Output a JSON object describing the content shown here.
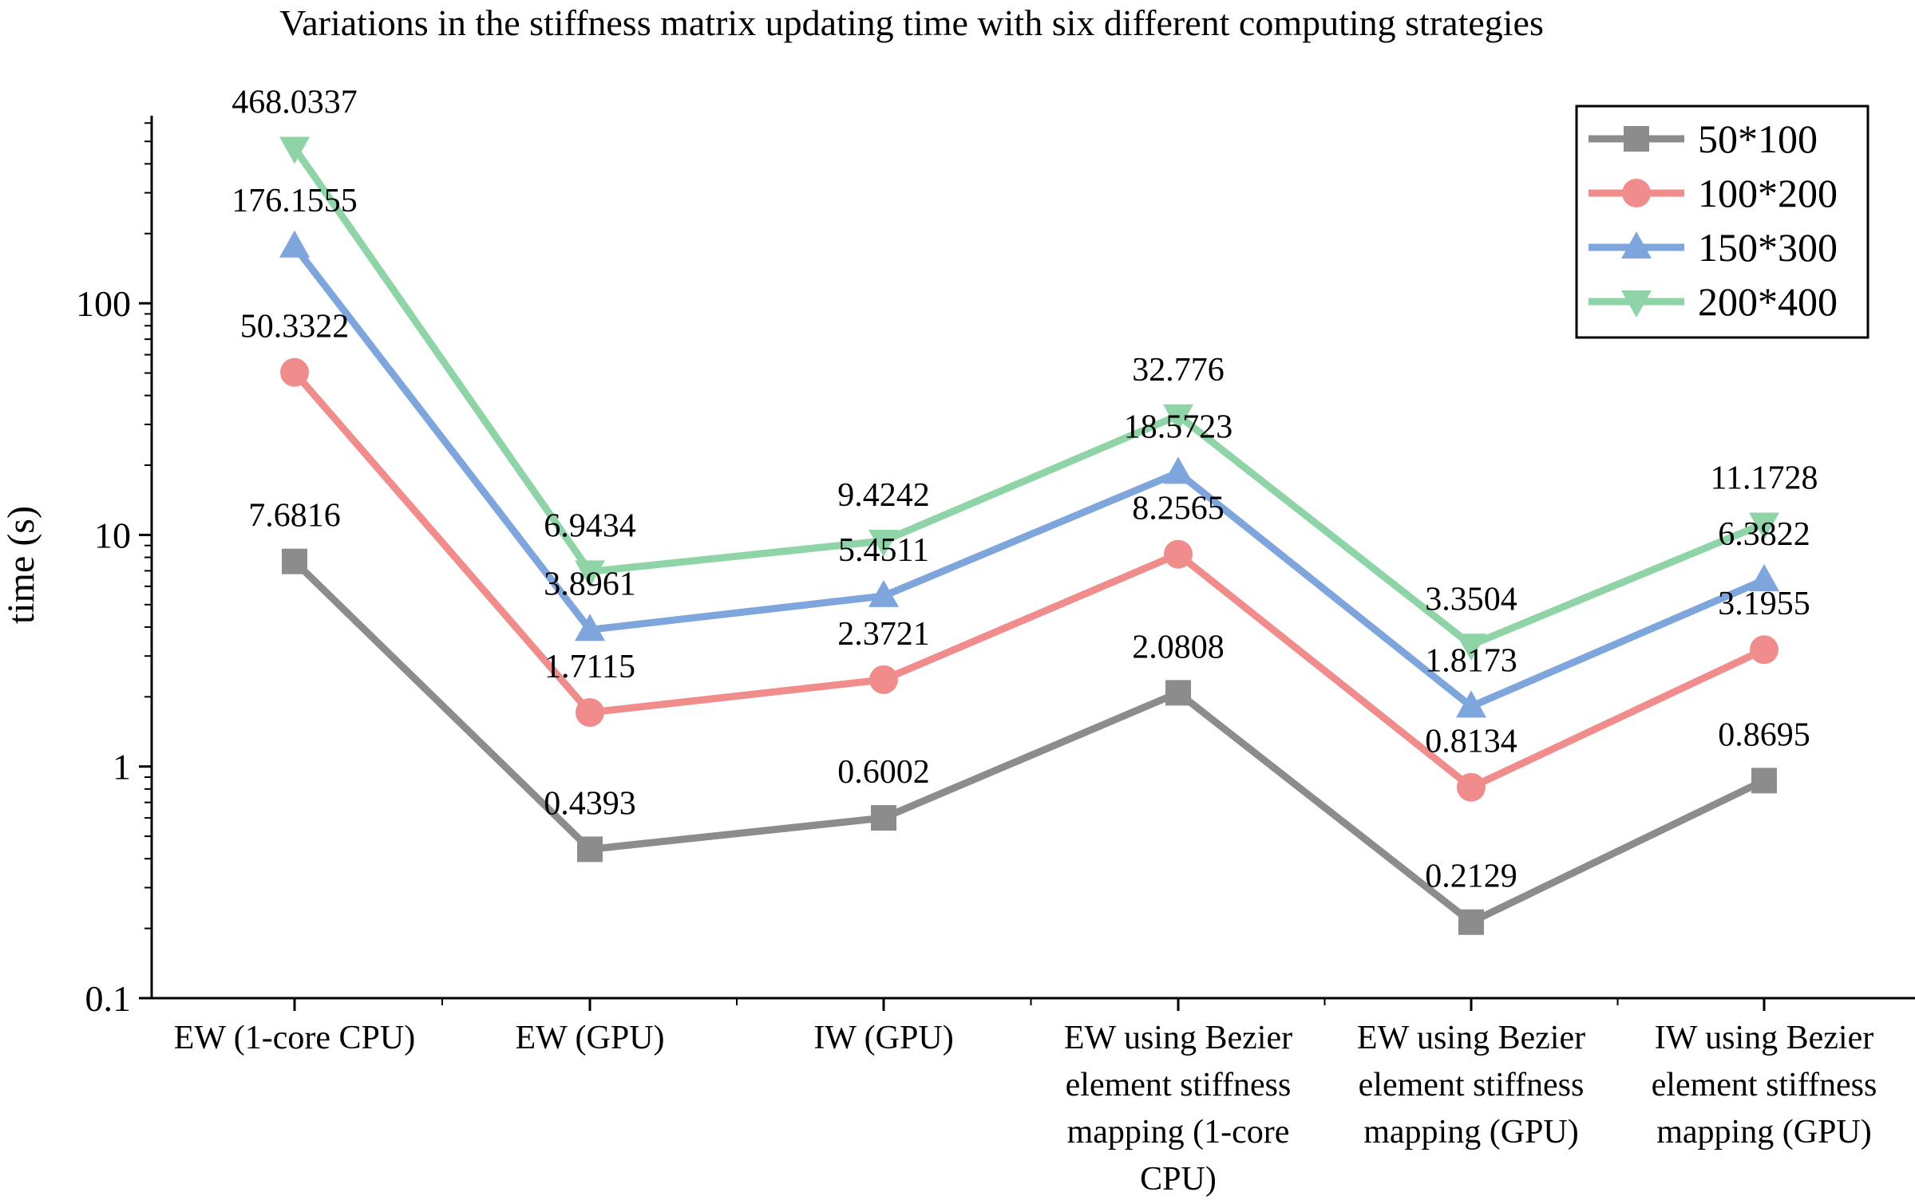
{
  "chart_data": {
    "type": "line",
    "title": "Variations in the stiffness matrix updating time with six different computing strategies",
    "xlabel": "",
    "ylabel": "time (s)",
    "yscale": "log",
    "ylim": [
      0.1,
      700
    ],
    "yticks": [
      {
        "value": 0.1,
        "label": "0.1"
      },
      {
        "value": 1,
        "label": "1"
      },
      {
        "value": 10,
        "label": "10"
      },
      {
        "value": 100,
        "label": "100"
      }
    ],
    "categories": [
      [
        "EW (1-core CPU)"
      ],
      [
        "EW (GPU)"
      ],
      [
        "IW (GPU)"
      ],
      [
        "EW using Bezier",
        "element stiffness",
        "mapping (1-core",
        "CPU)"
      ],
      [
        "EW using Bezier",
        "element stiffness",
        "mapping (GPU)"
      ],
      [
        "IW using Bezier",
        "element stiffness",
        "mapping (GPU)"
      ]
    ],
    "legend_position": "top-right",
    "series": [
      {
        "name": "50*100",
        "marker": "square",
        "color": "#8c8c8c",
        "values": [
          7.6816,
          0.4393,
          0.6002,
          2.0808,
          0.2129,
          0.8695
        ],
        "labels": [
          "7.6816",
          "0.4393",
          "0.6002",
          "2.0808",
          "0.2129",
          "0.8695"
        ]
      },
      {
        "name": "100*200",
        "marker": "circle",
        "color": "#f08c8c",
        "values": [
          50.3322,
          1.7115,
          2.3721,
          8.2565,
          0.8134,
          3.1955
        ],
        "labels": [
          "50.3322",
          "1.7115",
          "2.3721",
          "8.2565",
          "0.8134",
          "3.1955"
        ]
      },
      {
        "name": "150*300",
        "marker": "triangle-up",
        "color": "#7ea6dc",
        "values": [
          176.1555,
          3.8961,
          5.4511,
          18.5723,
          1.8173,
          6.3822
        ],
        "labels": [
          "176.1555",
          "3.8961",
          "5.4511",
          "18.5723",
          "1.8173",
          "6.3822"
        ]
      },
      {
        "name": "200*400",
        "marker": "triangle-down",
        "color": "#8ed4a6",
        "values": [
          468.0337,
          6.9434,
          9.4242,
          32.776,
          3.3504,
          11.1728
        ],
        "labels": [
          "468.0337",
          "6.9434",
          "9.4242",
          "32.776",
          "3.3504",
          "11.1728"
        ]
      }
    ]
  }
}
